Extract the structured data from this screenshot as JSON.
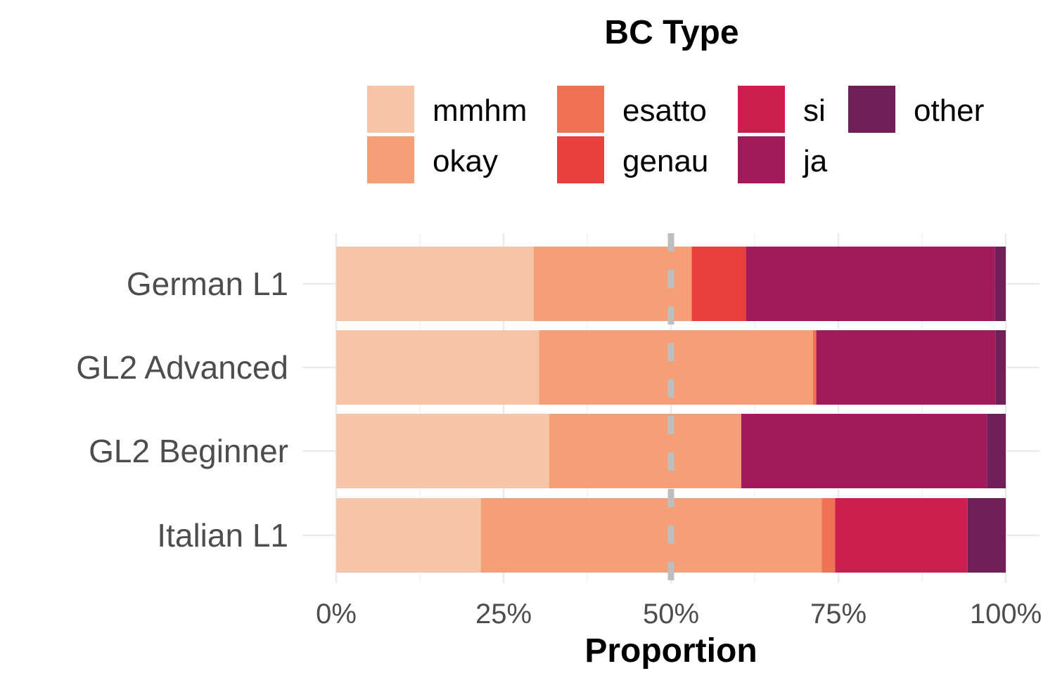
{
  "chart_data": {
    "type": "bar",
    "orientation": "horizontal",
    "stacked": true,
    "categories": [
      "German L1",
      "GL2 Advanced",
      "GL2 Beginner",
      "Italian L1"
    ],
    "series": [
      {
        "name": "mmhm",
        "color": "#F6C4A7",
        "values": [
          29.5,
          30.3,
          31.8,
          21.6
        ]
      },
      {
        "name": "okay",
        "color": "#F49F76",
        "values": [
          23.6,
          40.9,
          28.7,
          50.9
        ]
      },
      {
        "name": "esatto",
        "color": "#F07254",
        "values": [
          0,
          0.5,
          0,
          2.0
        ]
      },
      {
        "name": "genau",
        "color": "#E8403E",
        "values": [
          8.1,
          0,
          0,
          0
        ]
      },
      {
        "name": "si",
        "color": "#CD1F4E",
        "values": [
          0,
          0,
          0,
          19.8
        ]
      },
      {
        "name": "ja",
        "color": "#A11A5A",
        "values": [
          37.2,
          26.8,
          36.7,
          0
        ]
      },
      {
        "name": "other",
        "color": "#711F57",
        "values": [
          1.6,
          1.5,
          2.8,
          5.7
        ]
      }
    ],
    "legend": {
      "title": "BC Type",
      "position": "top",
      "order": [
        "mmhm",
        "okay",
        "esatto",
        "genau",
        "si",
        "ja",
        "other"
      ]
    },
    "xlabel": "Proportion",
    "ylabel": "",
    "xlim": [
      0,
      100
    ],
    "xticks": [
      0,
      25,
      50,
      75,
      100
    ],
    "xtick_labels": [
      "0%",
      "25%",
      "50%",
      "75%",
      "100%"
    ],
    "reference_line": {
      "value": 50,
      "style": "dashed",
      "color": "#BEBEBE"
    },
    "grid": true
  }
}
